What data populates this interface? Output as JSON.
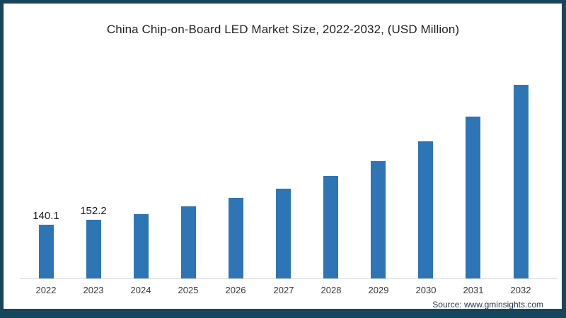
{
  "source": "Source: www.gminsights.com",
  "colors": {
    "bar": "#2e75b6",
    "frame_border": "#16455c",
    "axis_line": "#d9d9d9",
    "title_text": "#212121",
    "value_label_text": "#1a1a1a",
    "year_label_text": "#3a3a3a",
    "source_text": "#25384d",
    "background": "#ffffff"
  },
  "chart_data": {
    "type": "bar",
    "title": "China Chip-on-Board LED Market Size, 2022-2032, (USD Million)",
    "categories": [
      "2022",
      "2023",
      "2024",
      "2025",
      "2026",
      "2027",
      "2028",
      "2029",
      "2030",
      "2031",
      "2032"
    ],
    "values": [
      140.1,
      152.2,
      168,
      188,
      210,
      234,
      267,
      306,
      357,
      422,
      506
    ],
    "data_labels": {
      "2022": "140.1",
      "2023": "152.2"
    },
    "xlabel": "",
    "ylabel": "",
    "ylim": [
      0,
      530
    ],
    "grid": false,
    "legend": "none",
    "bar_color": "#2e75b6",
    "value_axis_visible": false,
    "notes": "Values for 2024-2032 are estimated from bar heights; only 2022 and 2023 carry printed data labels."
  }
}
